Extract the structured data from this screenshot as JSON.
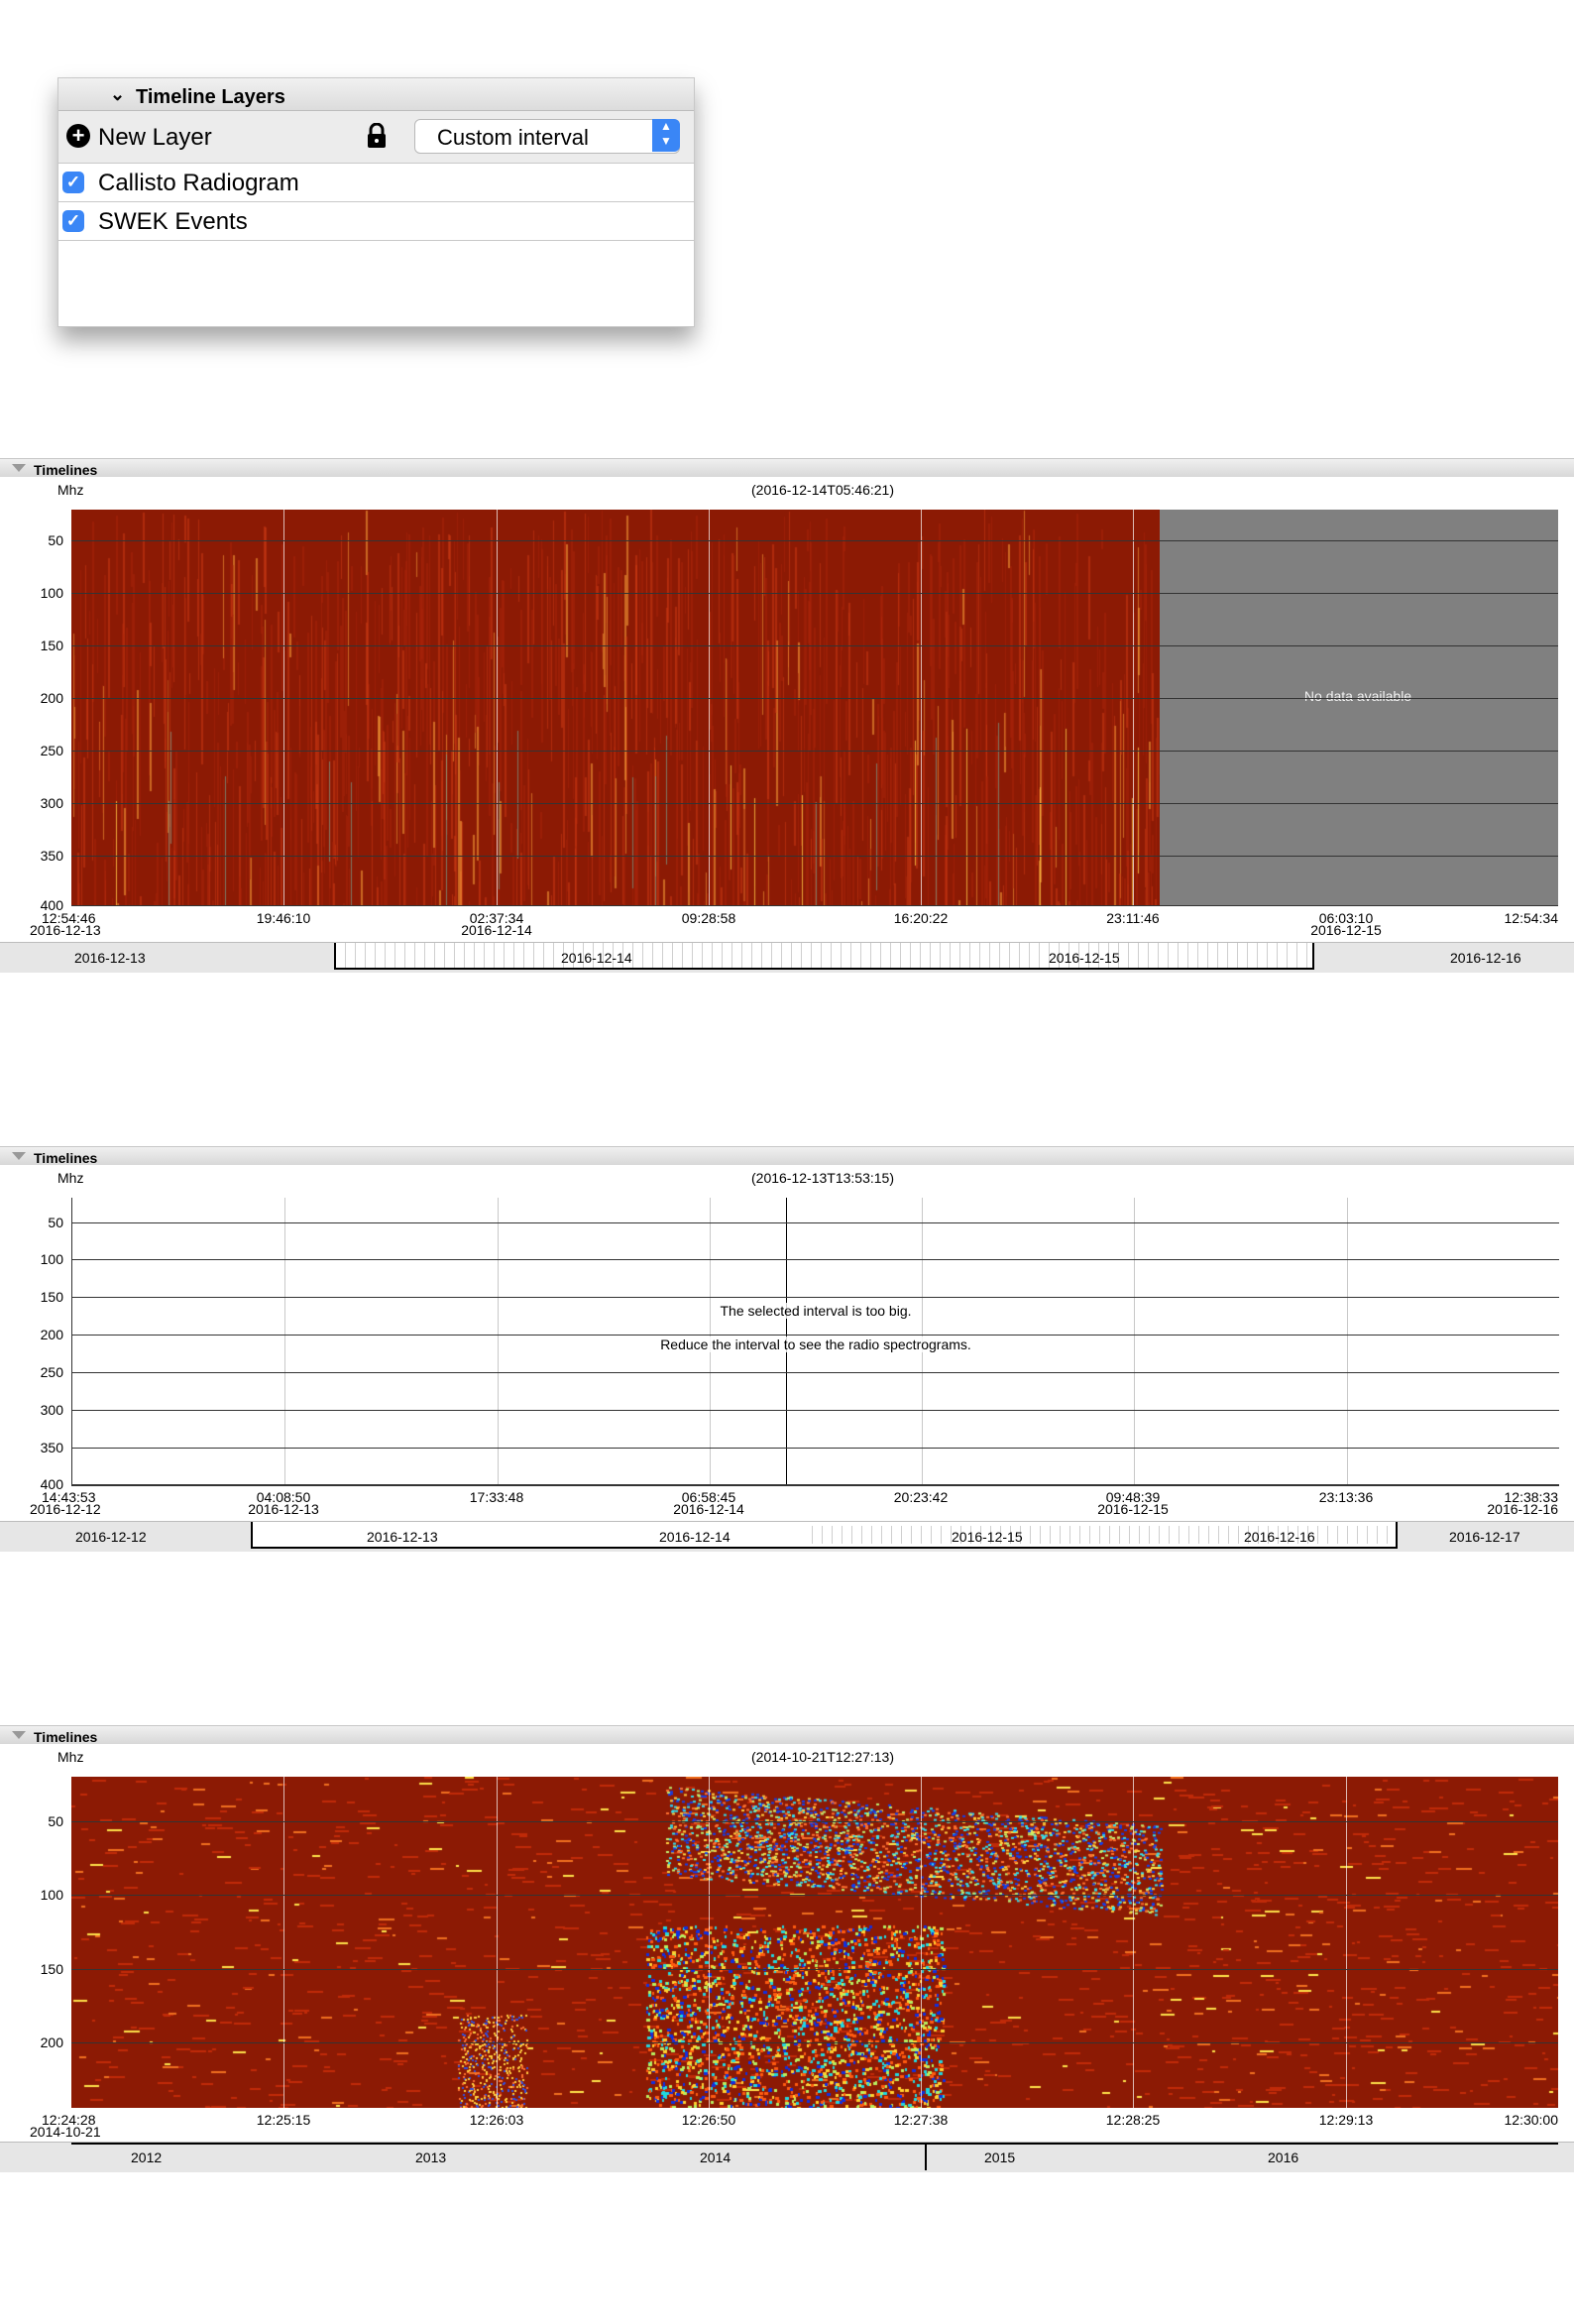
{
  "layers_panel": {
    "title": "Timeline Layers",
    "new_layer_label": "New Layer",
    "interval_select": "Custom interval",
    "layers": [
      {
        "label": "Callisto Radiogram",
        "checked": true
      },
      {
        "label": "SWEK Events",
        "checked": true
      }
    ],
    "icons": [
      "chevron-down-icon",
      "plus-circle-icon",
      "lock-icon",
      "select-arrows-icon",
      "checkbox-checked-icon"
    ]
  },
  "timeline1": {
    "panel_title": "Timelines",
    "unit": "Mhz",
    "timestamp": "(2016-12-14T05:46:21)",
    "y_ticks": [
      "50",
      "100",
      "150",
      "200",
      "250",
      "300",
      "350",
      "400"
    ],
    "x_ticks": [
      {
        "time": "12:54:46",
        "date": "2016-12-13"
      },
      {
        "time": "19:46:10",
        "date": ""
      },
      {
        "time": "02:37:34",
        "date": "2016-12-14"
      },
      {
        "time": "09:28:58",
        "date": ""
      },
      {
        "time": "16:20:22",
        "date": ""
      },
      {
        "time": "23:11:46",
        "date": ""
      },
      {
        "time": "06:03:10",
        "date": "2016-12-15"
      },
      {
        "time": "12:54:34",
        "date": ""
      }
    ],
    "no_data_message": "No data available",
    "nav_labels": [
      "2016-12-13",
      "2016-12-14",
      "2016-12-15",
      "2016-12-16"
    ]
  },
  "timeline2": {
    "panel_title": "Timelines",
    "unit": "Mhz",
    "timestamp": "(2016-12-13T13:53:15)",
    "y_ticks": [
      "50",
      "100",
      "150",
      "200",
      "250",
      "300",
      "350",
      "400"
    ],
    "x_ticks": [
      {
        "time": "14:43:53",
        "date": "2016-12-12"
      },
      {
        "time": "04:08:50",
        "date": "2016-12-13"
      },
      {
        "time": "17:33:48",
        "date": ""
      },
      {
        "time": "06:58:45",
        "date": "2016-12-14"
      },
      {
        "time": "20:23:42",
        "date": ""
      },
      {
        "time": "09:48:39",
        "date": "2016-12-15"
      },
      {
        "time": "23:13:36",
        "date": ""
      },
      {
        "time": "12:38:33",
        "date": "2016-12-16"
      }
    ],
    "message_line1": "The selected interval is too big.",
    "message_line2": "Reduce the interval to see the radio spectrograms.",
    "nav_labels": [
      "2016-12-12",
      "2016-12-13",
      "2016-12-14",
      "2016-12-15",
      "2016-12-16",
      "2016-12-17"
    ]
  },
  "timeline3": {
    "panel_title": "Timelines",
    "unit": "Mhz",
    "timestamp": "(2014-10-21T12:27:13)",
    "y_ticks": [
      "50",
      "100",
      "150",
      "200"
    ],
    "x_ticks": [
      {
        "time": "12:24:28",
        "date": "2014-10-21"
      },
      {
        "time": "12:25:15",
        "date": ""
      },
      {
        "time": "12:26:03",
        "date": ""
      },
      {
        "time": "12:26:50",
        "date": ""
      },
      {
        "time": "12:27:38",
        "date": ""
      },
      {
        "time": "12:28:25",
        "date": ""
      },
      {
        "time": "12:29:13",
        "date": ""
      },
      {
        "time": "12:30:00",
        "date": ""
      }
    ],
    "nav_labels": [
      "2012",
      "2013",
      "2014",
      "2015",
      "2016"
    ]
  },
  "colors": {
    "spectrogram_base": "#8c1a04",
    "no_data_gray": "#808080",
    "accent_blue": "#3a86f6"
  }
}
